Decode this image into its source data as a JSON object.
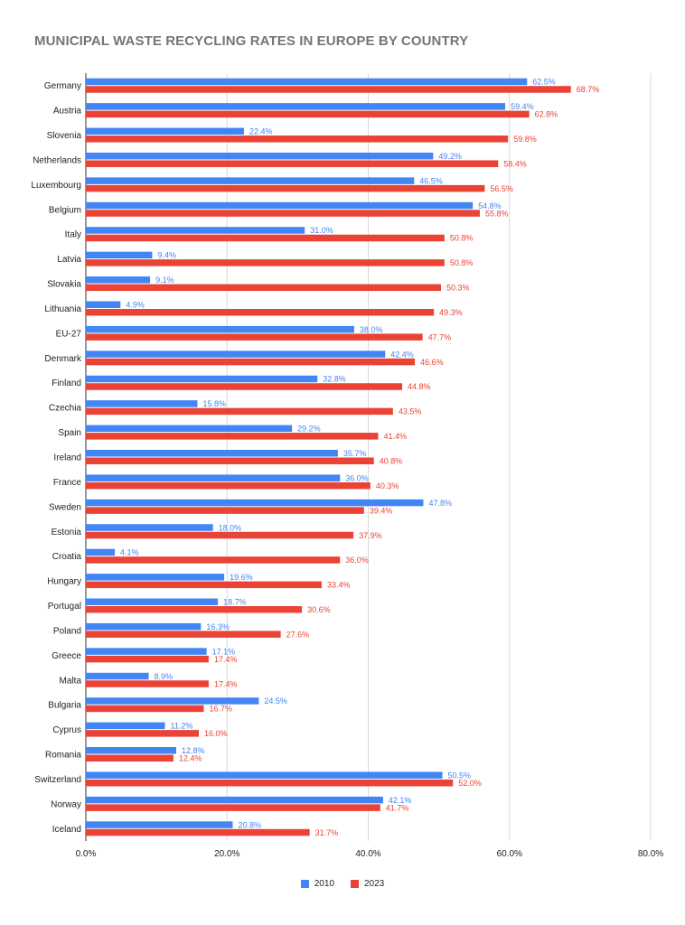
{
  "title": "MUNICIPAL WASTE RECYCLING RATES IN EUROPE BY COUNTRY",
  "colors": {
    "s2010": "#4285F4",
    "s2023": "#EA4335"
  },
  "chart_data": {
    "type": "bar",
    "orientation": "horizontal",
    "title": "MUNICIPAL WASTE RECYCLING RATES IN EUROPE BY COUNTRY",
    "xlim": [
      0,
      80
    ],
    "x_ticks": [
      "0.0%",
      "20.0%",
      "40.0%",
      "60.0%",
      "80.0%"
    ],
    "grid": true,
    "legend_position": "bottom",
    "categories": [
      "Germany",
      "Austria",
      "Slovenia",
      "Netherlands",
      "Luxembourg",
      "Belgium",
      "Italy",
      "Latvia",
      "Slovakia",
      "Lithuania",
      "EU-27",
      "Denmark",
      "Finland",
      "Czechia",
      "Spain",
      "Ireland",
      "France",
      "Sweden",
      "Estonia",
      "Croatia",
      "Hungary",
      "Portugal",
      "Poland",
      "Greece",
      "Malta",
      "Bulgaria",
      "Cyprus",
      "Romania",
      "Switzerland",
      "Norway",
      "Iceland"
    ],
    "series": [
      {
        "name": "2010",
        "values": [
          62.5,
          59.4,
          22.4,
          49.2,
          46.5,
          54.8,
          31.0,
          9.4,
          9.1,
          4.9,
          38.0,
          42.4,
          32.8,
          15.8,
          29.2,
          35.7,
          36.0,
          47.8,
          18.0,
          4.1,
          19.6,
          18.7,
          16.3,
          17.1,
          8.9,
          24.5,
          11.2,
          12.8,
          50.5,
          42.1,
          20.8
        ]
      },
      {
        "name": "2023",
        "values": [
          68.7,
          62.8,
          59.8,
          58.4,
          56.5,
          55.8,
          50.8,
          50.8,
          50.3,
          49.3,
          47.7,
          46.6,
          44.8,
          43.5,
          41.4,
          40.8,
          40.3,
          39.4,
          37.9,
          36.0,
          33.4,
          30.6,
          27.6,
          17.4,
          17.4,
          16.7,
          16.0,
          12.4,
          52.0,
          41.7,
          31.7
        ]
      }
    ]
  }
}
